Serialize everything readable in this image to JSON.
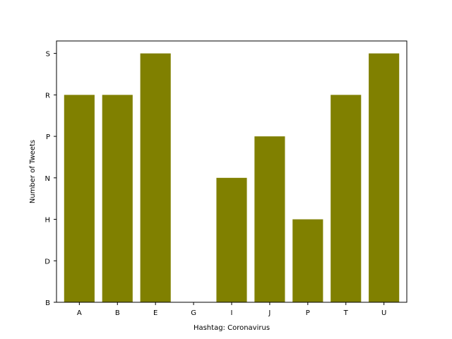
{
  "chart_data": {
    "type": "bar",
    "categories": [
      "A",
      "B",
      "E",
      "G",
      "I",
      "J",
      "P",
      "T",
      "U"
    ],
    "y_tick_labels": [
      "B",
      "D",
      "H",
      "N",
      "P",
      "R",
      "S"
    ],
    "values": [
      "R",
      "R",
      "S",
      "B",
      "N",
      "P",
      "H",
      "R",
      "S"
    ],
    "value_indices": [
      5,
      5,
      6,
      0,
      3,
      4,
      2,
      5,
      6
    ],
    "xlabel": "Hashtag: Coronavirus",
    "ylabel": "Number of Tweets",
    "ylim": [
      0,
      6
    ],
    "bar_color": "#808000",
    "grid": false
  }
}
